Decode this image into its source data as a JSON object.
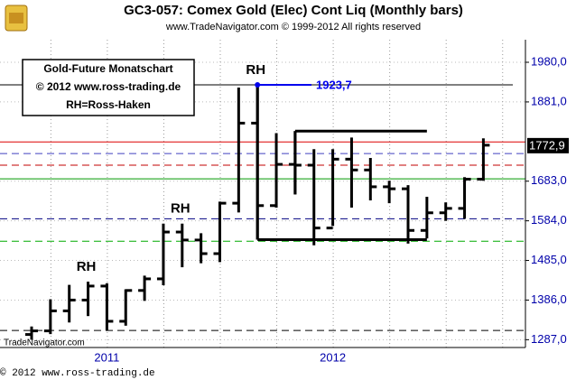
{
  "chart_data": {
    "type": "ohlc",
    "title": "GC3-057:  Comex Gold (Elec) Cont Liq  (Monthly bars)",
    "subtitle": "www.TradeNavigator.com © 1999-2012 All rights reserved",
    "info_box": [
      "Gold-Future Monatschart",
      "© 2012  www.ross-trading.de",
      "RH=Ross-Haken"
    ],
    "watermark": "TradeNavigator.com",
    "footer": "© 2012  www.ross-trading.de",
    "categories": [
      null,
      null,
      null,
      null,
      "2011",
      null,
      null,
      null,
      null,
      null,
      null,
      null,
      null,
      null,
      null,
      null,
      "2012",
      null,
      null,
      null,
      null,
      null,
      null,
      null,
      null
    ],
    "open": [
      1300,
      1309,
      1359,
      1386,
      1421,
      1333,
      1410,
      1439,
      1556,
      1536,
      1502,
      1628,
      1828,
      1622,
      1725,
      1723,
      1566,
      1738,
      1711,
      1669,
      1664,
      1560,
      1604,
      1615,
      1688
    ],
    "high": [
      1320,
      1388,
      1424,
      1432,
      1428,
      1413,
      1447,
      1577,
      1577,
      1553,
      1632,
      1917,
      1923.7,
      1803,
      1808,
      1763,
      1763,
      1792,
      1741,
      1684,
      1673,
      1644,
      1630,
      1693,
      1790
    ],
    "low": [
      1287,
      1301,
      1330,
      1346,
      1310,
      1322,
      1384,
      1423,
      1468,
      1478,
      1481,
      1605,
      1537,
      1617,
      1650,
      1523,
      1571,
      1617,
      1635,
      1628,
      1527,
      1540,
      1584,
      1589,
      1684
    ],
    "close": [
      1309,
      1359,
      1386,
      1421,
      1333,
      1410,
      1439,
      1556,
      1536,
      1502,
      1628,
      1828,
      1622,
      1725,
      1723,
      1566,
      1738,
      1711,
      1669,
      1664,
      1560,
      1604,
      1615,
      1688,
      1772.9
    ],
    "bar_color": "#000000",
    "ylim": [
      1267.5,
      2036.4
    ],
    "yticks": [
      {
        "value": 1980,
        "label": "1980,0"
      },
      {
        "value": 1881,
        "label": "1881,0"
      },
      {
        "value": 1683,
        "label": "1683,0"
      },
      {
        "value": 1584,
        "label": "1584,0"
      },
      {
        "value": 1485,
        "label": "1485,0"
      },
      {
        "value": 1386,
        "label": "1386,0"
      },
      {
        "value": 1287,
        "label": "1287,0"
      }
    ],
    "grid": true,
    "last_price": {
      "value": 1772.9,
      "label": "1772,9"
    },
    "levels": [
      {
        "value": 1923.7,
        "color": "#000000",
        "dashed": false
      },
      {
        "value": 1781,
        "color": "#dd0000",
        "dashed": false
      },
      {
        "value": 1752,
        "color": "#4040c0",
        "dashed": true
      },
      {
        "value": 1723,
        "color": "#c00000",
        "dashed": true
      },
      {
        "value": 1689,
        "color": "#009900",
        "dashed": false
      },
      {
        "value": 1589,
        "color": "#000080",
        "dashed": true
      },
      {
        "value": 1533,
        "color": "#00aa00",
        "dashed": true
      },
      {
        "value": 1310,
        "color": "#000000",
        "dashed": true
      }
    ],
    "high_marker": {
      "value": 1923.7,
      "label": "1923,7",
      "bar": 12,
      "color": "#0000ee"
    },
    "trend_lines": [
      {
        "value": 1808,
        "from": 14,
        "to": 21
      },
      {
        "value": 1537,
        "from": 12,
        "to": 21
      }
    ],
    "rh_labels": [
      {
        "text": "RH",
        "bar": 3
      },
      {
        "text": "RH",
        "bar": 8
      },
      {
        "text": "RH",
        "bar": 12
      }
    ]
  }
}
